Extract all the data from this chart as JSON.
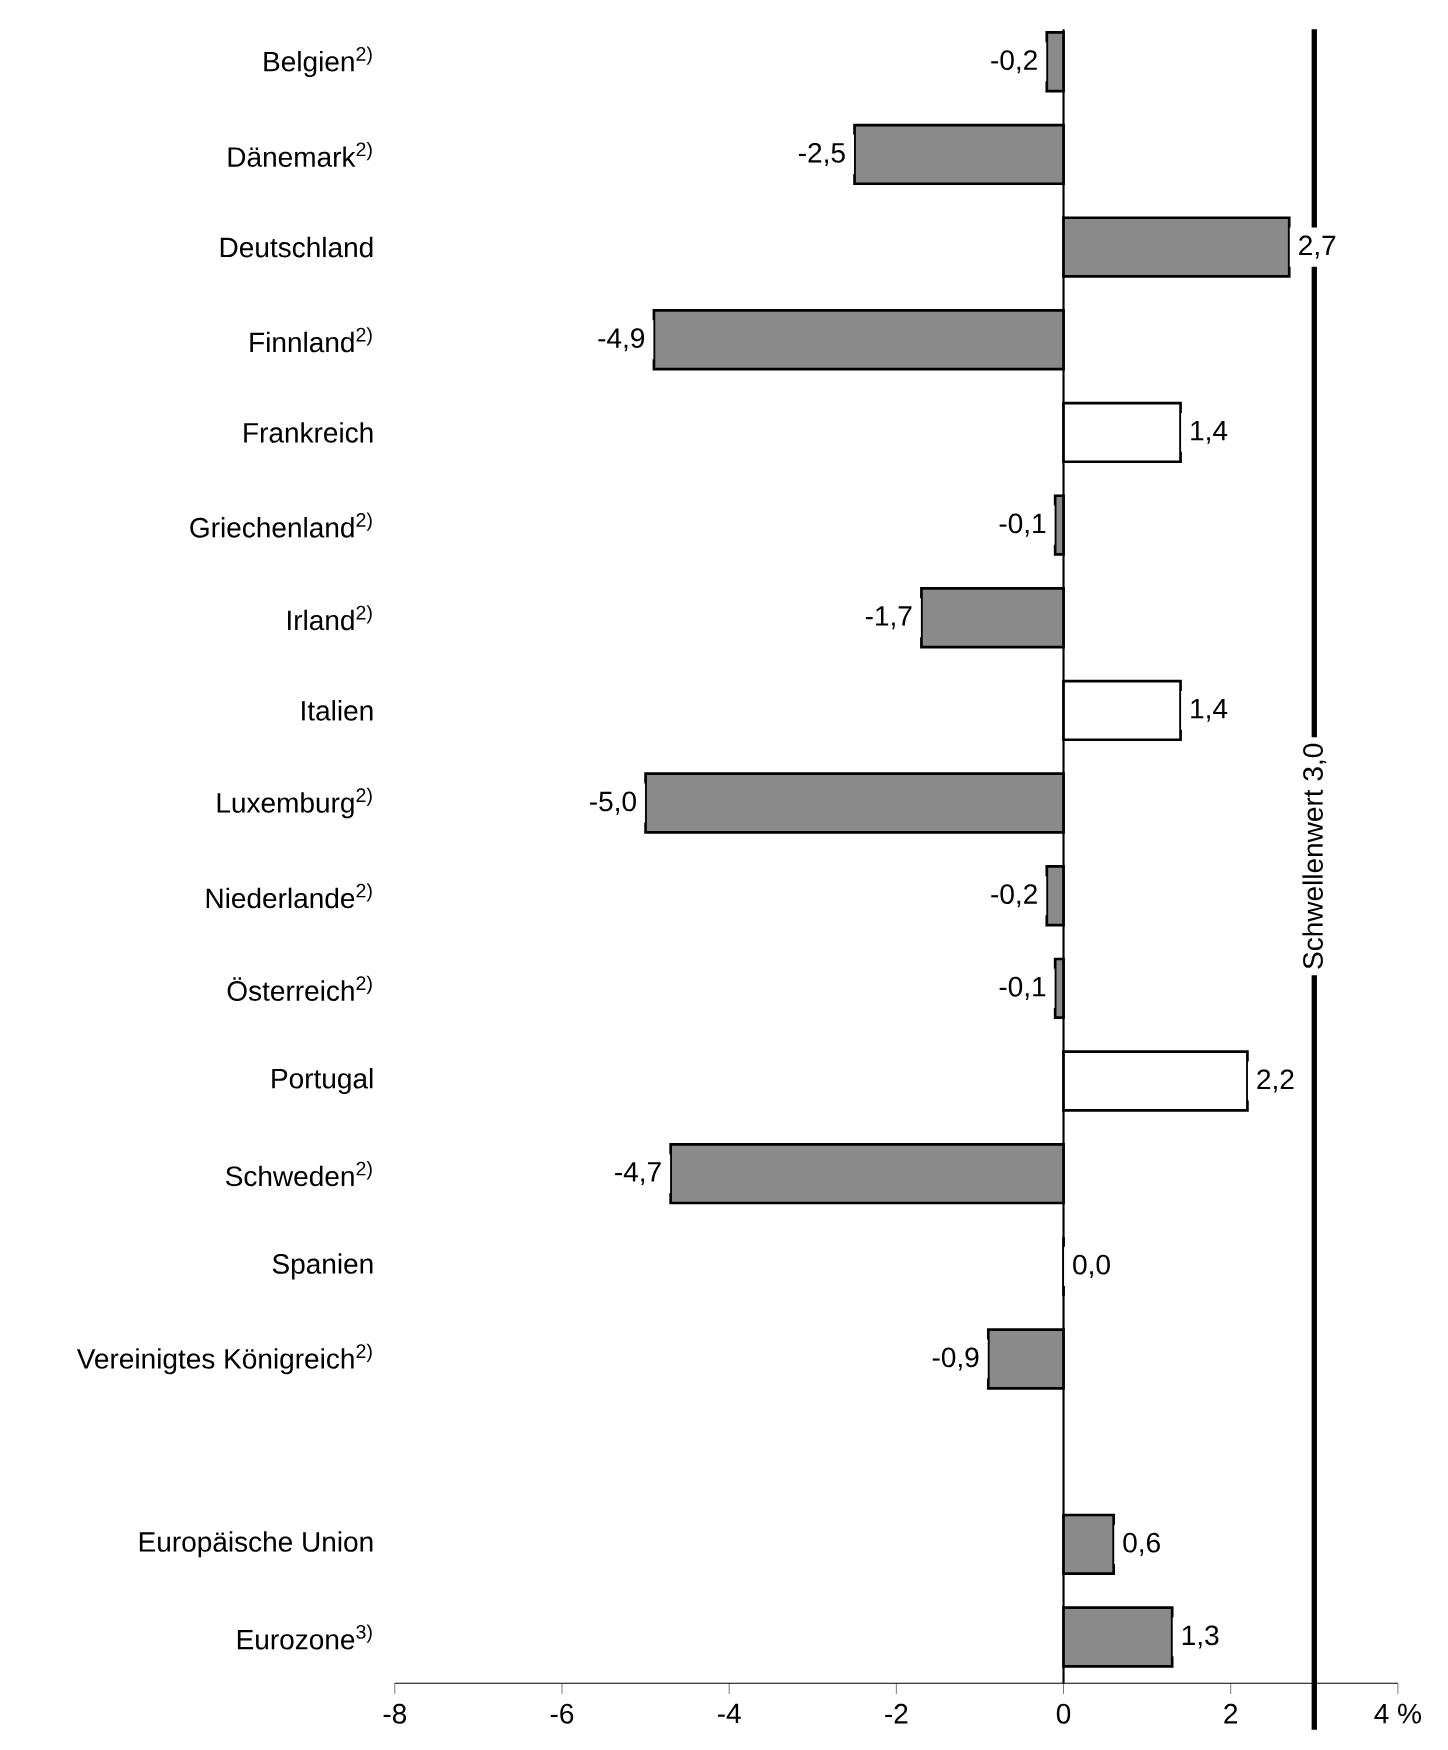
{
  "chart_data": {
    "type": "bar",
    "orientation": "horizontal",
    "categories": [
      "Belgien$^{2)}$",
      "Dänemark$^{2)}$",
      "Deutschland",
      "Finnland$^{2)}$",
      "Frankreich",
      "Griechenland$^{2)}$",
      "Irland$^{2)}$",
      "Italien",
      "Luxemburg$^{2)}$",
      "Niederlande$^{2)}$",
      "Österreich$^{2)}$",
      "Portugal",
      "Schweden$^{2)}$",
      "Spanien",
      "Vereinigtes Königreich$^{2)}$",
      null,
      "Europäische Union",
      "Eurozone$^{3)}$"
    ],
    "values": [
      -0.2,
      -2.5,
      2.7,
      -4.9,
      1.4,
      -0.1,
      -1.7,
      1.4,
      -5.0,
      -0.2,
      -0.1,
      2.2,
      -4.7,
      0.0,
      -0.9,
      null,
      0.6,
      1.3
    ],
    "colors": [
      "#8a8a8a",
      "#8a8a8a",
      "#8a8a8a",
      "#8a8a8a",
      "#ffffff",
      "#8a8a8a",
      "#8a8a8a",
      "#ffffff",
      "#8a8a8a",
      "#8a8a8a",
      "#8a8a8a",
      "#ffffff",
      "#8a8a8a",
      "#8a8a8a",
      "#8a8a8a",
      "#8a8a8a",
      "#8a8a8a",
      "#8a8a8a"
    ],
    "value_labels": [
      "-0,2",
      "-2,5",
      "2,7",
      "-4,9",
      "1,4",
      "-0,1",
      "-1,7",
      "1,4",
      "-5,0",
      "-0,2",
      "-0,1",
      "2,2",
      "-4,7",
      "0,0",
      "-0,9",
      null,
      "0,6",
      "1,3"
    ],
    "xlim": [
      -8,
      4
    ],
    "xticks": [
      -8,
      -6,
      -4,
      -2,
      0,
      2,
      {
        "value": 4,
        "label": "4 %"
      }
    ],
    "ref_lines": [
      {
        "axis": "x",
        "value": 3,
        "label": "Schwellenwert 3,0",
        "color": "#000000"
      }
    ]
  }
}
